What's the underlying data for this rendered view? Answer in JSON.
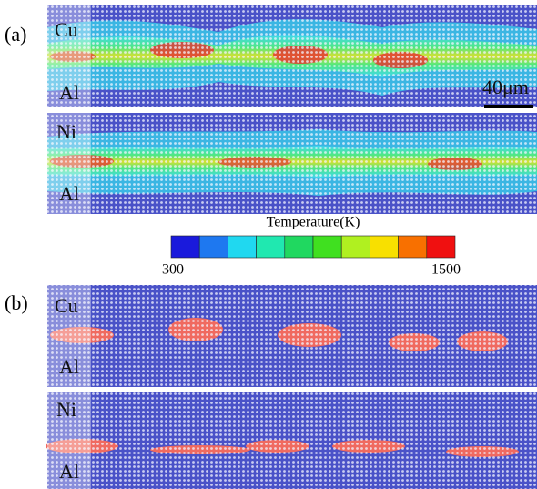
{
  "panels": [
    {
      "label": "(a)",
      "strips": [
        {
          "top": "Cu",
          "bottom": "Al"
        },
        {
          "top": "Ni",
          "bottom": "Al"
        }
      ],
      "scale_bar": "40μm"
    },
    {
      "label": "(b)",
      "strips": [
        {
          "top": "Cu",
          "bottom": "Al"
        },
        {
          "top": "Ni",
          "bottom": "Al"
        }
      ]
    }
  ],
  "colorbar": {
    "title": "Temperature(K)",
    "min": "300",
    "max": "1500",
    "colors": [
      "#1a1adc",
      "#1e78f0",
      "#20d8f0",
      "#20e8b0",
      "#20d860",
      "#40e020",
      "#b0f020",
      "#f8e000",
      "#f87000",
      "#f01010"
    ]
  }
}
